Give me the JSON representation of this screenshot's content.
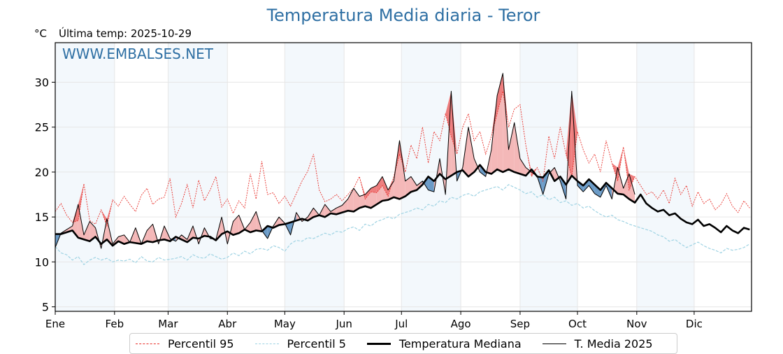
{
  "title": "Temperatura Media diaria - Teror",
  "unit": "°C",
  "last_temp_label": "Última temp: 2025-10-29",
  "watermark": "WWW.EMBALSES.NET",
  "legend": [
    {
      "key": "p95",
      "label": "Percentil 95"
    },
    {
      "key": "p5",
      "label": "Percentil 5"
    },
    {
      "key": "median",
      "label": "Temperatura Mediana"
    },
    {
      "key": "y2025",
      "label": "T. Media 2025"
    }
  ],
  "colors": {
    "title": "#2e6fa3",
    "p95": "#e8302a",
    "p5": "#9fd3e3",
    "median": "#000000",
    "y2025": "#000000",
    "above_fill": "#f4b8b8",
    "above_extreme_fill": "#ee7d7d",
    "below_fill": "#6b9bc7",
    "month_band": "#f3f8fc",
    "grid": "#e6e6e6"
  },
  "chart_data": {
    "type": "line",
    "title": "Temperatura Media diaria - Teror",
    "xlabel": "",
    "ylabel": "°C",
    "ylim": [
      4.5,
      34.4
    ],
    "xlim": [
      1,
      365
    ],
    "yticks": [
      5,
      10,
      15,
      20,
      25,
      30
    ],
    "grid": true,
    "legend_position": "bottom",
    "x_tick_days": [
      1,
      32,
      60,
      91,
      121,
      152,
      182,
      213,
      244,
      274,
      305,
      335
    ],
    "x_tick_labels": [
      "Ene",
      "Feb",
      "Mar",
      "Abr",
      "May",
      "Jun",
      "Jul",
      "Ago",
      "Sep",
      "Oct",
      "Nov",
      "Dic"
    ],
    "sample_days": [
      1,
      4,
      7,
      10,
      13,
      16,
      19,
      22,
      25,
      28,
      31,
      34,
      37,
      40,
      43,
      46,
      49,
      52,
      55,
      58,
      61,
      64,
      67,
      70,
      73,
      76,
      79,
      82,
      85,
      88,
      91,
      94,
      97,
      100,
      103,
      106,
      109,
      112,
      115,
      118,
      121,
      124,
      127,
      130,
      133,
      136,
      139,
      142,
      145,
      148,
      151,
      154,
      157,
      160,
      163,
      166,
      169,
      172,
      175,
      178,
      181,
      184,
      187,
      190,
      193,
      196,
      199,
      202,
      205,
      208,
      211,
      214,
      217,
      220,
      223,
      226,
      229,
      232,
      235,
      238,
      241,
      244,
      247,
      250,
      253,
      256,
      259,
      262,
      265,
      268,
      271,
      274,
      277,
      280,
      283,
      286,
      289,
      292,
      295,
      298,
      301,
      304,
      307,
      310,
      313,
      316,
      319,
      322,
      325,
      328,
      331,
      334,
      337,
      340,
      343,
      346,
      349,
      352,
      355,
      358,
      361,
      364
    ],
    "series": [
      {
        "name": "Percentil 95",
        "key": "p95",
        "values": [
          15.6,
          16.5,
          15.2,
          14.4,
          14.6,
          18.7,
          14.6,
          14.2,
          15.8,
          14.0,
          16.9,
          16.2,
          17.3,
          16.4,
          15.6,
          17.4,
          18.2,
          16.4,
          17.0,
          17.2,
          19.3,
          15.0,
          16.5,
          18.6,
          16.0,
          19.1,
          16.8,
          18.0,
          19.5,
          16.1,
          17.0,
          15.4,
          16.8,
          16.0,
          19.8,
          17.0,
          21.2,
          17.5,
          17.7,
          16.5,
          17.3,
          16.2,
          17.6,
          19.0,
          20.1,
          22.0,
          18.0,
          16.7,
          17.0,
          17.5,
          16.8,
          17.5,
          18.2,
          19.5,
          17.0,
          17.8,
          17.7,
          18.5,
          17.3,
          19.5,
          22.0,
          20.0,
          23.0,
          21.5,
          25.0,
          21.0,
          24.5,
          23.5,
          26.5,
          24.0,
          22.0,
          25.0,
          26.5,
          23.5,
          24.5,
          22.0,
          24.0,
          26.5,
          29.0,
          25.0,
          27.0,
          27.5,
          23.0,
          19.5,
          20.5,
          19.0,
          24.0,
          21.5,
          25.0,
          22.0,
          19.5,
          24.5,
          22.5,
          21.0,
          22.0,
          20.0,
          23.5,
          21.0,
          19.0,
          22.8,
          18.0,
          19.5,
          18.5,
          17.5,
          17.8,
          17.0,
          18.0,
          16.5,
          19.3,
          17.5,
          18.5,
          16.2,
          17.8,
          16.5,
          17.0,
          15.8,
          16.4,
          17.6,
          16.2,
          15.5,
          16.8,
          16.0
        ]
      },
      {
        "name": "Percentil 5",
        "key": "p5",
        "values": [
          11.7,
          11.0,
          10.8,
          10.2,
          10.6,
          9.7,
          10.2,
          10.5,
          10.2,
          10.4,
          10.0,
          10.2,
          10.1,
          10.3,
          9.9,
          10.6,
          10.1,
          10.0,
          10.5,
          10.2,
          10.3,
          10.4,
          10.6,
          10.2,
          10.8,
          10.5,
          10.4,
          10.9,
          10.6,
          10.3,
          10.5,
          11.0,
          10.7,
          11.2,
          10.9,
          11.4,
          11.5,
          11.3,
          11.8,
          11.6,
          11.2,
          12.0,
          12.4,
          12.3,
          12.7,
          12.6,
          12.9,
          13.2,
          13.0,
          13.4,
          13.3,
          13.7,
          13.9,
          13.5,
          14.2,
          14.0,
          14.5,
          14.7,
          15.0,
          14.8,
          15.3,
          15.5,
          15.7,
          16.0,
          15.8,
          16.4,
          16.2,
          16.8,
          16.6,
          17.2,
          17.0,
          17.4,
          17.6,
          17.3,
          17.8,
          18.0,
          18.2,
          18.4,
          18.0,
          18.6,
          18.3,
          18.0,
          17.6,
          17.8,
          17.2,
          17.5,
          16.9,
          17.2,
          16.6,
          16.8,
          16.3,
          16.5,
          16.0,
          16.2,
          15.7,
          15.3,
          15.0,
          15.2,
          14.7,
          14.5,
          14.2,
          14.0,
          13.8,
          13.6,
          13.4,
          13.0,
          12.8,
          12.3,
          12.5,
          12.0,
          11.6,
          11.9,
          12.2,
          11.8,
          11.5,
          11.3,
          11.0,
          11.5,
          11.3,
          11.4,
          11.6,
          12.0
        ]
      },
      {
        "name": "Temperatura Mediana",
        "key": "median",
        "values": [
          13.1,
          13.1,
          13.3,
          13.5,
          12.7,
          12.5,
          12.3,
          12.8,
          12.0,
          12.5,
          11.8,
          12.3,
          12.0,
          12.2,
          12.1,
          12.0,
          12.3,
          12.2,
          12.4,
          12.5,
          12.3,
          12.8,
          12.5,
          12.2,
          12.7,
          12.6,
          12.9,
          12.8,
          12.4,
          13.1,
          13.4,
          13.0,
          13.2,
          13.6,
          13.3,
          13.5,
          13.4,
          14.0,
          13.8,
          14.1,
          14.2,
          14.4,
          14.6,
          14.8,
          14.6,
          15.0,
          15.2,
          15.0,
          15.4,
          15.3,
          15.5,
          15.7,
          15.6,
          16.0,
          16.2,
          16.0,
          16.4,
          16.8,
          16.9,
          17.2,
          17.0,
          17.3,
          17.8,
          18.0,
          18.6,
          19.5,
          19.0,
          19.8,
          19.2,
          19.6,
          20.0,
          20.2,
          19.5,
          20.0,
          20.8,
          20.0,
          19.8,
          20.3,
          20.0,
          20.3,
          20.0,
          19.8,
          19.6,
          20.3,
          19.5,
          19.4,
          20.2,
          19.0,
          19.5,
          18.6,
          19.6,
          19.0,
          18.5,
          19.2,
          18.6,
          18.0,
          18.8,
          18.2,
          17.6,
          17.5,
          17.0,
          16.6,
          17.5,
          16.5,
          16.0,
          15.6,
          15.8,
          15.2,
          15.4,
          14.8,
          14.4,
          14.2,
          14.7,
          14.0,
          14.2,
          13.8,
          13.3,
          14.0,
          13.5,
          13.2,
          13.8,
          13.6
        ]
      },
      {
        "name": "T. Media 2025",
        "key": "y2025",
        "values": [
          11.6,
          13.2,
          13.6,
          14.0,
          16.4,
          13.0,
          14.5,
          13.8,
          11.5,
          14.8,
          12.0,
          12.8,
          13.0,
          12.2,
          13.8,
          12.0,
          13.5,
          14.2,
          12.0,
          14.0,
          12.6,
          12.3,
          13.0,
          12.5,
          14.0,
          12.0,
          13.8,
          12.6,
          12.5,
          15.0,
          12.0,
          14.5,
          15.2,
          13.6,
          14.4,
          15.6,
          13.5,
          12.6,
          14.0,
          15.0,
          14.3,
          13.0,
          15.5,
          14.5,
          15.0,
          16.0,
          15.2,
          16.4,
          15.6,
          16.0,
          16.3,
          17.0,
          18.2,
          17.3,
          17.5,
          18.2,
          18.5,
          19.5,
          18.0,
          19.0,
          23.5,
          19.0,
          19.5,
          18.5,
          19.0,
          18.0,
          17.8,
          21.5,
          17.5,
          29.0,
          19.0,
          20.5,
          25.0,
          21.5,
          20.0,
          19.5,
          22.5,
          28.5,
          31.0,
          22.5,
          25.5,
          21.5,
          20.5,
          20.0,
          19.5,
          17.5,
          19.8,
          20.5,
          19.0,
          17.0,
          29.0,
          18.5,
          17.8,
          18.5,
          17.6,
          17.2,
          18.5,
          17.0,
          20.5,
          18.2,
          19.8,
          17.5,
          null,
          null,
          null,
          null,
          null,
          null,
          null,
          null,
          null,
          null,
          null,
          null,
          null,
          null,
          null,
          null,
          null,
          null,
          null,
          null
        ]
      }
    ]
  }
}
